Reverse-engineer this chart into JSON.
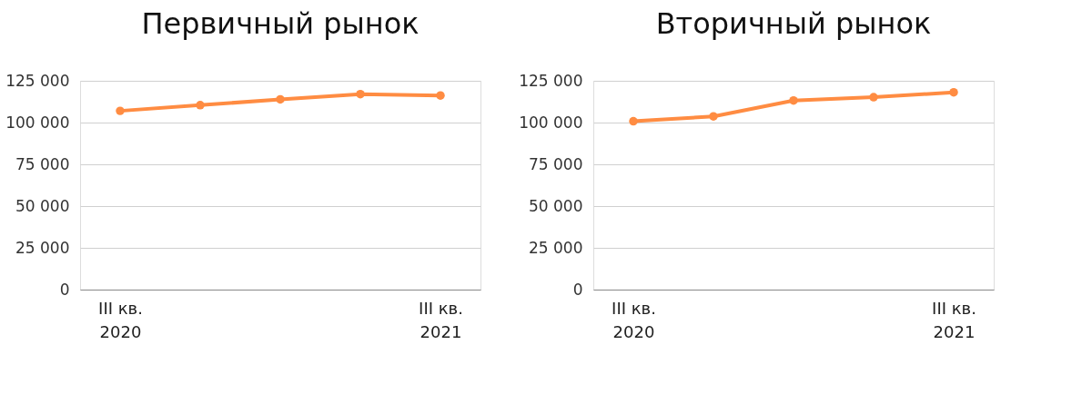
{
  "chart_data": [
    {
      "type": "line",
      "title": "Первичный рынок",
      "categories": [
        "III кв.\n2020",
        null,
        null,
        null,
        "III кв.\n2021"
      ],
      "series": [
        {
          "color": "#ff8c42",
          "values": [
            107000,
            110400,
            113900,
            117000,
            116200
          ]
        }
      ],
      "ylim": [
        0,
        125000
      ],
      "yticks": [
        {
          "value": 0,
          "label": "0"
        },
        {
          "value": 25000,
          "label": "25 000"
        },
        {
          "value": 50000,
          "label": "50 000"
        },
        {
          "value": 75000,
          "label": "75 000"
        },
        {
          "value": 100000,
          "label": "100 000"
        },
        {
          "value": 125000,
          "label": "125 000"
        }
      ],
      "grid": "y",
      "marker": "circle",
      "line_style": "solid"
    },
    {
      "type": "line",
      "title": "Вторичный рынок",
      "categories": [
        "III кв.\n2020",
        null,
        null,
        null,
        "III кв.\n2021"
      ],
      "series": [
        {
          "color": "#ff8c42",
          "values": [
            100800,
            103700,
            113200,
            115200,
            118100
          ]
        }
      ],
      "ylim": [
        0,
        125000
      ],
      "yticks": [
        {
          "value": 0,
          "label": "0"
        },
        {
          "value": 25000,
          "label": "25 000"
        },
        {
          "value": 50000,
          "label": "50 000"
        },
        {
          "value": 75000,
          "label": "75 000"
        },
        {
          "value": 100000,
          "label": "100 000"
        },
        {
          "value": 125000,
          "label": "125 000"
        }
      ],
      "grid": "y",
      "marker": "circle",
      "line_style": "solid"
    }
  ]
}
